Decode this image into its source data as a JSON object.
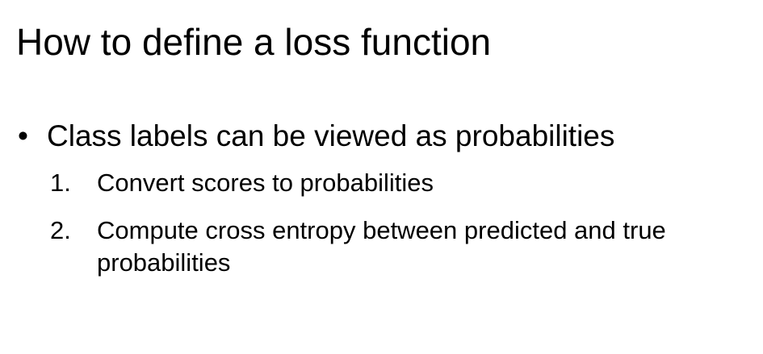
{
  "slide": {
    "title": "How to define a loss function",
    "bullet": {
      "marker": "•",
      "text": "Class labels can be viewed as probabilities"
    },
    "steps": [
      {
        "number": "1.",
        "text": "Convert scores to probabilities"
      },
      {
        "number": "2.",
        "text": "Compute cross entropy between predicted and true probabilities"
      }
    ]
  }
}
